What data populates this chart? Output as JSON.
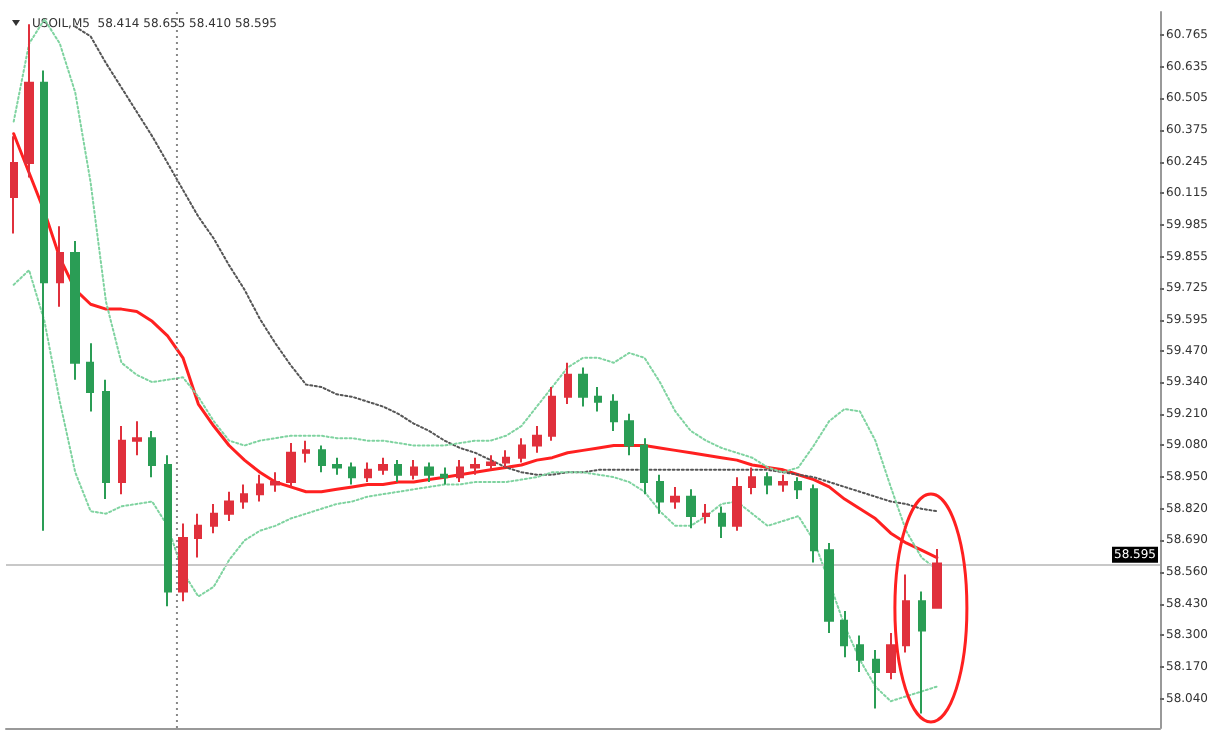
{
  "chart_data": {
    "type": "candlestick",
    "title": "USOIL,M5  58.414 58.655 58.410 58.595",
    "categories": [
      null,
      null,
      null,
      null,
      null,
      null,
      null,
      null,
      null,
      null,
      null,
      null,
      null,
      null,
      null,
      null,
      null,
      null,
      null,
      null,
      null,
      null,
      null,
      null,
      null,
      null,
      null,
      null,
      null,
      null,
      null,
      null,
      null,
      null,
      null,
      null,
      null,
      null,
      null,
      null,
      null,
      null,
      null,
      null,
      null,
      null,
      null,
      null,
      null,
      null,
      null,
      null,
      null,
      null,
      null,
      null,
      null,
      null,
      null,
      null,
      null,
      null,
      null,
      null,
      null,
      null,
      null,
      null,
      null,
      null,
      null,
      null,
      null,
      null,
      null
    ],
    "ohlc": [
      [
        60.1,
        60.35,
        59.95,
        60.24
      ],
      [
        60.24,
        60.81,
        60.18,
        60.57
      ],
      [
        60.57,
        60.62,
        58.73,
        59.75
      ],
      [
        59.75,
        59.98,
        59.65,
        59.87
      ],
      [
        59.87,
        59.92,
        59.35,
        59.42
      ],
      [
        59.42,
        59.5,
        59.22,
        59.3
      ],
      [
        59.3,
        59.35,
        58.86,
        58.93
      ],
      [
        58.93,
        59.16,
        58.88,
        59.1
      ],
      [
        59.1,
        59.18,
        59.04,
        59.11
      ],
      [
        59.11,
        59.14,
        58.95,
        59.0
      ],
      [
        59.0,
        59.04,
        58.42,
        58.48
      ],
      [
        58.48,
        58.76,
        58.44,
        58.7
      ],
      [
        58.7,
        58.8,
        58.62,
        58.75
      ],
      [
        58.75,
        58.84,
        58.72,
        58.8
      ],
      [
        58.8,
        58.89,
        58.77,
        58.85
      ],
      [
        58.85,
        58.92,
        58.82,
        58.88
      ],
      [
        58.88,
        58.96,
        58.85,
        58.92
      ],
      [
        58.92,
        58.97,
        58.89,
        58.93
      ],
      [
        58.93,
        59.09,
        58.91,
        59.05
      ],
      [
        59.05,
        59.1,
        59.01,
        59.06
      ],
      [
        59.06,
        59.08,
        58.97,
        59.0
      ],
      [
        59.0,
        59.03,
        58.96,
        58.99
      ],
      [
        58.99,
        59.01,
        58.92,
        58.95
      ],
      [
        58.95,
        59.01,
        58.93,
        58.98
      ],
      [
        58.98,
        59.03,
        58.96,
        59.0
      ],
      [
        59.0,
        59.02,
        58.93,
        58.96
      ],
      [
        58.96,
        59.02,
        58.94,
        58.99
      ],
      [
        58.99,
        59.01,
        58.93,
        58.96
      ],
      [
        58.96,
        58.99,
        58.92,
        58.95
      ],
      [
        58.95,
        59.02,
        58.93,
        58.99
      ],
      [
        58.99,
        59.03,
        58.96,
        59.0
      ],
      [
        59.0,
        59.04,
        58.98,
        59.01
      ],
      [
        59.01,
        59.06,
        58.99,
        59.03
      ],
      [
        59.03,
        59.11,
        59.01,
        59.08
      ],
      [
        59.08,
        59.16,
        59.05,
        59.12
      ],
      [
        59.12,
        59.32,
        59.1,
        59.28
      ],
      [
        59.28,
        59.42,
        59.25,
        59.37
      ],
      [
        59.37,
        59.4,
        59.24,
        59.28
      ],
      [
        59.28,
        59.32,
        59.22,
        59.26
      ],
      [
        59.26,
        59.29,
        59.14,
        59.18
      ],
      [
        59.18,
        59.21,
        59.04,
        59.08
      ],
      [
        59.08,
        59.11,
        58.88,
        58.93
      ],
      [
        58.93,
        58.96,
        58.8,
        58.85
      ],
      [
        58.85,
        58.91,
        58.82,
        58.87
      ],
      [
        58.87,
        58.9,
        58.74,
        58.79
      ],
      [
        58.79,
        58.84,
        58.76,
        58.8
      ],
      [
        58.8,
        58.83,
        58.7,
        58.75
      ],
      [
        58.75,
        58.95,
        58.73,
        58.91
      ],
      [
        58.91,
        58.99,
        58.88,
        58.95
      ],
      [
        58.95,
        58.97,
        58.88,
        58.92
      ],
      [
        58.92,
        58.96,
        58.89,
        58.93
      ],
      [
        58.93,
        58.95,
        58.86,
        58.9
      ],
      [
        58.9,
        58.92,
        58.6,
        58.65
      ],
      [
        58.65,
        58.68,
        58.31,
        58.36
      ],
      [
        58.36,
        58.4,
        58.21,
        58.26
      ],
      [
        58.26,
        58.3,
        58.15,
        58.2
      ],
      [
        58.2,
        58.24,
        58.0,
        58.15
      ],
      [
        58.15,
        58.31,
        58.12,
        58.26
      ],
      [
        58.26,
        58.55,
        58.23,
        58.44
      ],
      [
        58.44,
        58.48,
        57.98,
        58.32
      ],
      [
        58.414,
        58.655,
        58.41,
        58.595
      ],
      null,
      null,
      null,
      null,
      null,
      null,
      null,
      null,
      null,
      null,
      null,
      null,
      null,
      null
    ],
    "colors": [
      "#e0303c",
      "#e0303c",
      "#2a9d55",
      "#e0303c",
      "#2a9d55",
      "#2a9d55",
      "#2a9d55",
      "#e0303c",
      "#e0303c",
      "#2a9d55",
      "#2a9d55",
      "#e0303c",
      "#e0303c",
      "#e0303c",
      "#e0303c",
      "#e0303c",
      "#e0303c",
      "#e0303c",
      "#e0303c",
      "#e0303c",
      "#2a9d55",
      "#2a9d55",
      "#2a9d55",
      "#e0303c",
      "#e0303c",
      "#2a9d55",
      "#e0303c",
      "#2a9d55",
      "#2a9d55",
      "#e0303c",
      "#e0303c",
      "#e0303c",
      "#e0303c",
      "#e0303c",
      "#e0303c",
      "#e0303c",
      "#e0303c",
      "#2a9d55",
      "#2a9d55",
      "#2a9d55",
      "#2a9d55",
      "#2a9d55",
      "#2a9d55",
      "#e0303c",
      "#2a9d55",
      "#e0303c",
      "#2a9d55",
      "#e0303c",
      "#e0303c",
      "#2a9d55",
      "#e0303c",
      "#2a9d55",
      "#2a9d55",
      "#2a9d55",
      "#2a9d55",
      "#2a9d55",
      "#2a9d55",
      "#e0303c",
      "#e0303c",
      "#2a9d55",
      "#e0303c",
      null,
      null,
      null,
      null,
      null,
      null,
      null,
      null,
      null,
      null,
      null,
      null,
      null,
      null
    ],
    "series": [
      {
        "type": "line",
        "color": "#ff2020",
        "line_style": "solid",
        "values": [
          60.36,
          60.2,
          60.04,
          59.85,
          59.72,
          59.66,
          59.64,
          59.64,
          59.63,
          59.59,
          59.53,
          59.44,
          59.25,
          59.16,
          59.08,
          59.02,
          58.97,
          58.93,
          58.91,
          58.89,
          58.89,
          58.9,
          58.91,
          58.92,
          58.92,
          58.93,
          58.93,
          58.94,
          58.95,
          58.96,
          58.97,
          58.98,
          58.99,
          59.0,
          59.02,
          59.03,
          59.05,
          59.06,
          59.07,
          59.08,
          59.08,
          59.08,
          59.07,
          59.06,
          59.05,
          59.04,
          59.03,
          59.02,
          59.0,
          58.99,
          58.98,
          58.96,
          58.94,
          58.91,
          58.86,
          58.82,
          58.78,
          58.72,
          58.68,
          58.65,
          58.62,
          null,
          null,
          null,
          null,
          null,
          null,
          null,
          null,
          null,
          null,
          null,
          null,
          null,
          null
        ]
      },
      {
        "type": "line",
        "color": "#555555",
        "line_style": "dotted",
        "values": [
          null,
          null,
          null,
          null,
          60.8,
          60.76,
          60.65,
          60.55,
          60.45,
          60.35,
          60.24,
          60.13,
          60.02,
          59.93,
          59.82,
          59.72,
          59.6,
          59.5,
          59.41,
          59.33,
          59.32,
          59.29,
          59.28,
          59.26,
          59.24,
          59.21,
          59.17,
          59.14,
          59.1,
          59.07,
          59.05,
          59.02,
          58.99,
          58.97,
          58.96,
          58.96,
          58.97,
          58.97,
          58.98,
          58.98,
          58.98,
          58.98,
          58.98,
          58.98,
          58.98,
          58.98,
          58.98,
          58.98,
          58.98,
          58.98,
          58.97,
          58.96,
          58.95,
          58.93,
          58.91,
          58.89,
          58.87,
          58.85,
          58.84,
          58.82,
          58.81,
          null,
          null,
          null,
          null,
          null,
          null,
          null,
          null,
          null,
          null,
          null,
          null,
          null,
          null
        ]
      },
      {
        "type": "line",
        "color": "#7fd3a0",
        "line_style": "dotted",
        "values": [
          60.41,
          60.73,
          60.83,
          60.73,
          60.53,
          60.16,
          59.67,
          59.42,
          59.37,
          59.34,
          59.35,
          59.36,
          59.28,
          59.18,
          59.1,
          59.08,
          59.1,
          59.11,
          59.12,
          59.12,
          59.12,
          59.11,
          59.11,
          59.1,
          59.1,
          59.09,
          59.08,
          59.08,
          59.08,
          59.09,
          59.1,
          59.1,
          59.12,
          59.16,
          59.24,
          59.32,
          59.4,
          59.44,
          59.44,
          59.42,
          59.46,
          59.44,
          59.34,
          59.22,
          59.14,
          59.1,
          59.07,
          59.05,
          59.03,
          58.99,
          58.97,
          58.99,
          59.08,
          59.18,
          59.23,
          59.22,
          59.1,
          58.91,
          58.73,
          58.62,
          58.57,
          null,
          null,
          null,
          null,
          null,
          null,
          null,
          null,
          null,
          null,
          null,
          null,
          null,
          null
        ]
      },
      {
        "type": "line",
        "color": "#7fd3a0",
        "line_style": "dotted",
        "values": [
          59.74,
          59.8,
          59.59,
          59.26,
          58.97,
          58.81,
          58.8,
          58.83,
          58.84,
          58.85,
          58.75,
          58.56,
          58.46,
          58.5,
          58.61,
          58.69,
          58.73,
          58.75,
          58.78,
          58.8,
          58.82,
          58.84,
          58.85,
          58.87,
          58.88,
          58.89,
          58.9,
          58.91,
          58.92,
          58.92,
          58.93,
          58.93,
          58.93,
          58.94,
          58.95,
          58.97,
          58.97,
          58.97,
          58.96,
          58.95,
          58.93,
          58.89,
          58.81,
          58.75,
          58.75,
          58.79,
          58.84,
          58.85,
          58.8,
          58.75,
          58.77,
          58.79,
          58.69,
          58.52,
          58.34,
          58.2,
          58.09,
          58.03,
          58.05,
          58.07,
          58.09,
          null,
          null,
          null,
          null,
          null,
          null,
          null,
          null,
          null,
          null,
          null,
          null,
          null,
          null
        ]
      }
    ],
    "ylim": [
      57.92,
      60.86
    ],
    "yticks": [
      60.765,
      60.635,
      60.505,
      60.375,
      60.245,
      60.115,
      59.985,
      59.855,
      59.725,
      59.595,
      {
        "value": 59.47,
        "label": "59.470"
      },
      {
        "value": 59.34,
        "label": "59.340"
      },
      {
        "value": 59.21,
        "label": "59.210"
      },
      {
        "value": 59.08,
        "label": "59.080"
      },
      {
        "value": 58.95,
        "label": "58.950"
      },
      {
        "value": 58.82,
        "label": "58.820"
      },
      {
        "value": 58.69,
        "label": "58.690"
      },
      {
        "value": 58.56,
        "label": "58.560"
      },
      {
        "value": 58.43,
        "label": "58.430"
      },
      {
        "value": 58.3,
        "label": "58.300"
      },
      {
        "value": 58.17,
        "label": "58.170"
      },
      {
        "value": 58.04,
        "label": "58.040"
      }
    ],
    "ref_lines": [
      {
        "axis": "y",
        "value": 58.595,
        "label": "58.595",
        "color": "#c8c8c8"
      }
    ],
    "tick_labels": "y",
    "grid": false
  }
}
